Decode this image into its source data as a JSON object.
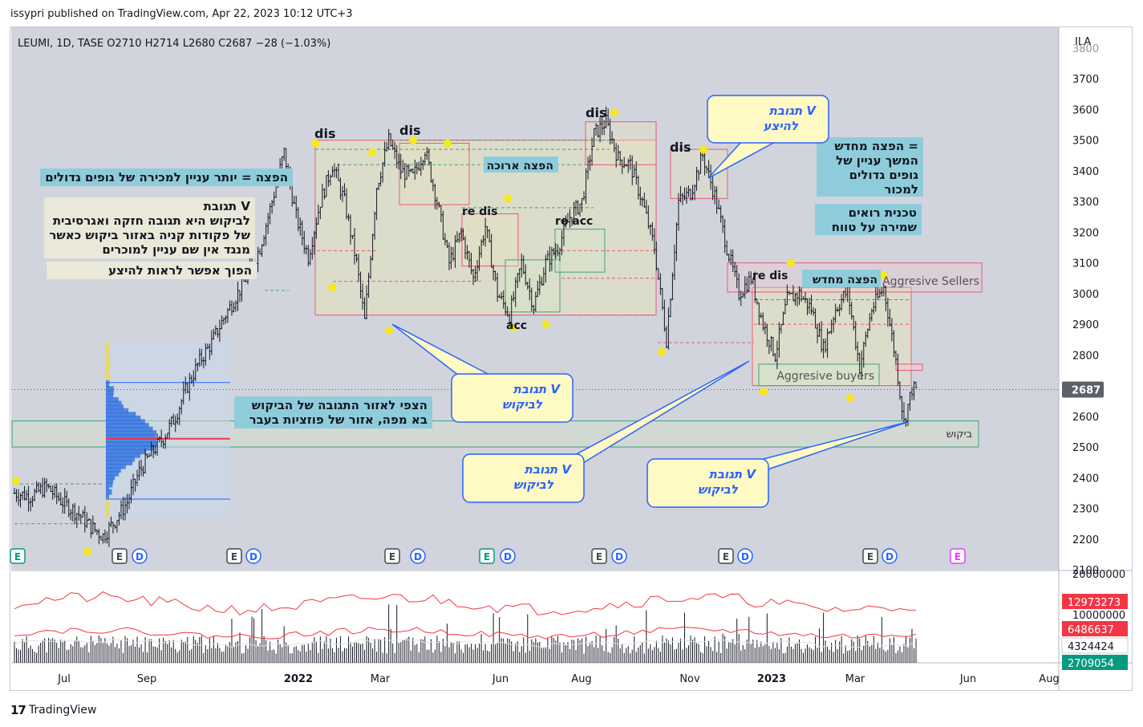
{
  "header": {
    "published": "issypri published on TradingView.com, Apr 22, 2023 10:12 UTC+3"
  },
  "legend": {
    "symbol": "LEUMI, 1D, TASE",
    "ohlc": "O2710  H2714  L2680  C2687  −28 (−1.03%)",
    "currency": "ILA"
  },
  "footer": {
    "brand": "TradingView"
  },
  "price_label": "2687",
  "volume_labels": [
    {
      "text": "12973273",
      "color": "#f23645"
    },
    {
      "text": "6486637",
      "color": "#f23645"
    },
    {
      "text": "4324424",
      "color": "#ffffff"
    },
    {
      "text": "2709054",
      "color": "#089981"
    }
  ],
  "colors": {
    "bg_price": "#d1d4dc",
    "bg_volume": "#ffffff",
    "candle": "#131722",
    "cyan_box": "#8fccdb",
    "note_box": "#e9e8d9",
    "callout_fill": "#fff9c4",
    "callout_stroke": "#2962ff",
    "red_zone": "#e85a7a",
    "green_zone": "#3fa37a",
    "marker": "#f7e81b",
    "last_price": "#9b2c8f"
  },
  "chart_data": {
    "type": "candlestick",
    "symbol": "LEUMI",
    "interval": "1D",
    "exchange": "TASE",
    "ylim": [
      2100,
      3800
    ],
    "y_ticks": [
      2100,
      2200,
      2300,
      2400,
      2500,
      2600,
      2700,
      2800,
      2900,
      3000,
      3100,
      3200,
      3300,
      3400,
      3500,
      3600,
      3700
    ],
    "x_ticks": [
      "Jul",
      "Sep",
      "2022",
      "Mar",
      "Jun",
      "Aug",
      "Nov",
      "2023",
      "Mar",
      "Jun",
      "Aug"
    ],
    "last": {
      "open": 2710,
      "high": 2714,
      "low": 2680,
      "close": 2687,
      "change": -28,
      "change_pct": -1.03
    },
    "price_path": [
      [
        0,
        2350
      ],
      [
        4,
        2340
      ],
      [
        8,
        2370
      ],
      [
        12,
        2320
      ],
      [
        16,
        2280
      ],
      [
        19,
        2240
      ],
      [
        22,
        2210
      ],
      [
        25,
        2260
      ],
      [
        28,
        2320
      ],
      [
        31,
        2420
      ],
      [
        34,
        2480
      ],
      [
        37,
        2530
      ],
      [
        40,
        2600
      ],
      [
        43,
        2700
      ],
      [
        46,
        2780
      ],
      [
        49,
        2840
      ],
      [
        52,
        2920
      ],
      [
        55,
        2990
      ],
      [
        58,
        3060
      ],
      [
        61,
        3150
      ],
      [
        64,
        3300
      ],
      [
        67,
        3460
      ],
      [
        70,
        3250
      ],
      [
        73,
        3120
      ],
      [
        76,
        3300
      ],
      [
        79,
        3420
      ],
      [
        82,
        3300
      ],
      [
        85,
        3100
      ],
      [
        87,
        2910
      ],
      [
        90,
        3350
      ],
      [
        93,
        3500
      ],
      [
        96,
        3400
      ],
      [
        99,
        3380
      ],
      [
        102,
        3470
      ],
      [
        105,
        3300
      ],
      [
        108,
        3100
      ],
      [
        111,
        3200
      ],
      [
        114,
        3050
      ],
      [
        117,
        3220
      ],
      [
        120,
        3000
      ],
      [
        123,
        2930
      ],
      [
        126,
        3100
      ],
      [
        129,
        2960
      ],
      [
        132,
        3100
      ],
      [
        135,
        3150
      ],
      [
        138,
        3250
      ],
      [
        141,
        3300
      ],
      [
        144,
        3520
      ],
      [
        147,
        3560
      ],
      [
        150,
        3440
      ],
      [
        153,
        3420
      ],
      [
        156,
        3300
      ],
      [
        159,
        3150
      ],
      [
        162,
        2850
      ],
      [
        165,
        3300
      ],
      [
        168,
        3330
      ],
      [
        171,
        3450
      ],
      [
        174,
        3320
      ],
      [
        177,
        3150
      ],
      [
        180,
        3000
      ],
      [
        183,
        3050
      ],
      [
        186,
        2900
      ],
      [
        189,
        2800
      ],
      [
        192,
        2980
      ],
      [
        195,
        3000
      ],
      [
        198,
        2950
      ],
      [
        201,
        2820
      ],
      [
        204,
        2950
      ],
      [
        207,
        3010
      ],
      [
        210,
        2760
      ],
      [
        213,
        2950
      ],
      [
        216,
        3020
      ],
      [
        219,
        2780
      ],
      [
        221,
        2580
      ],
      [
        223,
        2690
      ],
      [
        224,
        2687
      ]
    ],
    "volume_ylim": [
      0,
      20000000
    ],
    "volume_ticks": [
      "20000000",
      "10000000"
    ],
    "volume_lines": [
      12973273,
      6486637,
      4324424,
      2709054
    ],
    "annotations": [
      {
        "text": "dis",
        "price": 3520,
        "t": 70
      },
      {
        "text": "dis",
        "price": 3540,
        "t": 93
      },
      {
        "text": "re dis",
        "price": 3290,
        "t": 111
      },
      {
        "text": "re acc",
        "price": 3260,
        "t": 133
      },
      {
        "text": "acc",
        "price": 2890,
        "t": 122
      },
      {
        "text": "dis",
        "price": 3590,
        "t": 144
      },
      {
        "text": "dis",
        "price": 3480,
        "t": 163
      },
      {
        "text": "re dis",
        "price": 3050,
        "t": 186
      },
      {
        "text": "הפצה ארוכה",
        "price": 3410
      },
      {
        "text": "הפצה מחדש",
        "price": 3050
      },
      {
        "text": "Aggresive Sellers",
        "price": 3040
      },
      {
        "text": "Aggresive buyers",
        "price": 2740
      },
      {
        "text": "ביקוש",
        "price": 2550
      }
    ],
    "notes": [
      {
        "lines": [
          "הפצה = יותר עניין למכירה של גופים גדולים"
        ]
      },
      {
        "lines": [
          "תגובת V",
          "לביקוש היא תגובה חזקה ואגרסיבית",
          "של פקודות קניה באזור ביקוש כאשר",
          "מנגד אין שם עניין למוכרים"
        ]
      },
      {
        "lines": [
          "הפוך אפשר לראות להיצע"
        ]
      },
      {
        "lines": [
          "הצפי לאזור התגובה של הביקוש",
          "בא מפה, אזור של פוזציות בעבר"
        ]
      },
      {
        "lines": [
          "הפצה מחדש =",
          "המשך עניין של",
          "גופים גדולים",
          "למכור"
        ]
      },
      {
        "lines": [
          "טכנית רואים",
          "שמירה על טווח"
        ]
      }
    ],
    "callouts": [
      {
        "lines": [
          "תגובת V",
          "להיצע"
        ]
      },
      {
        "lines": [
          "תגובת V",
          "לביקוש"
        ]
      },
      {
        "lines": [
          "תגובת V",
          "לביקוש"
        ]
      },
      {
        "lines": [
          "תגובת V",
          "לביקוש"
        ]
      }
    ],
    "events": [
      "E",
      "E",
      "D",
      "E",
      "D",
      "E",
      "D",
      "E",
      "D",
      "E",
      "D",
      "E",
      "D",
      "E",
      "D",
      "E",
      "D",
      "E"
    ]
  }
}
